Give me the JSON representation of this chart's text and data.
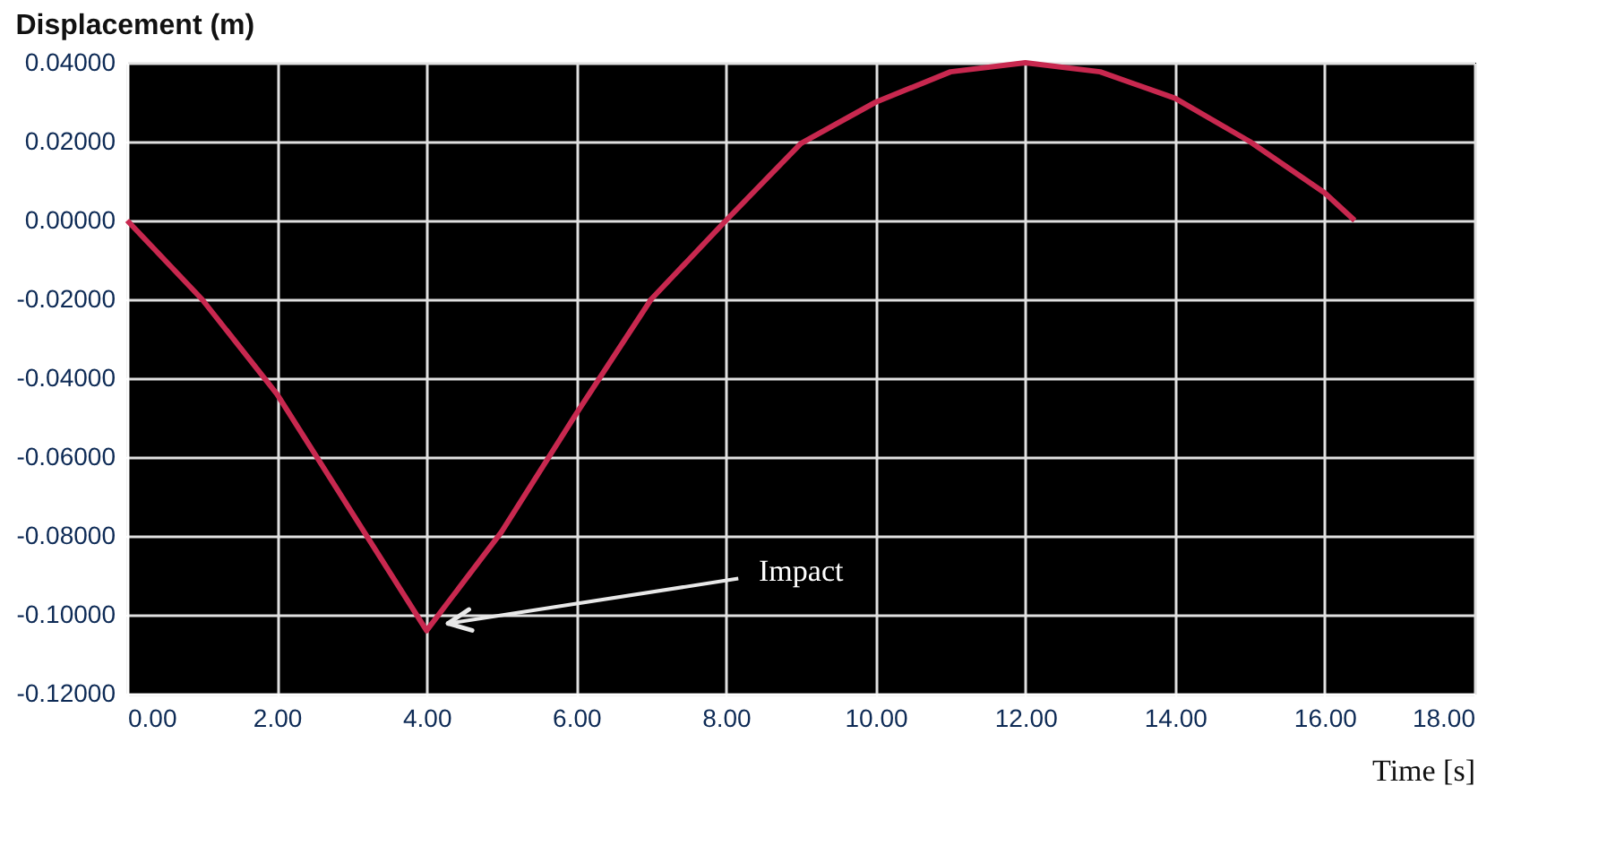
{
  "chart_data": {
    "type": "line",
    "title": "Displacement (m)",
    "xlabel": "Time [s]",
    "series": [
      {
        "color": "#c8284f",
        "x": [
          0,
          1,
          2,
          3,
          4,
          5,
          6,
          7,
          8,
          9,
          10,
          11,
          12,
          13,
          14,
          15,
          16,
          16.4
        ],
        "values": [
          0,
          -0.02,
          -0.044,
          -0.074,
          -0.104,
          -0.079,
          -0.049,
          -0.02,
          0,
          0.0195,
          0.03,
          0.0377,
          0.04,
          0.0377,
          0.031,
          0.02,
          0.007,
          0
        ]
      }
    ],
    "xlim": [
      0,
      18
    ],
    "xticks": [
      {
        "value": 0,
        "label": "0.00"
      },
      {
        "value": 2,
        "label": "2.00"
      },
      {
        "value": 4,
        "label": "4.00"
      },
      {
        "value": 6,
        "label": "6.00"
      },
      {
        "value": 8,
        "label": "8.00"
      },
      {
        "value": 10,
        "label": "10.00"
      },
      {
        "value": 12,
        "label": "12.00"
      },
      {
        "value": 14,
        "label": "14.00"
      },
      {
        "value": 16,
        "label": "16.00"
      },
      {
        "value": 18,
        "label": "18.00"
      }
    ],
    "ylim": [
      -0.12,
      0.04
    ],
    "yticks": [
      {
        "value": 0.04,
        "label": "0.04000"
      },
      {
        "value": 0.02,
        "label": "0.02000"
      },
      {
        "value": 0,
        "label": "0.00000"
      },
      {
        "value": -0.02,
        "label": "-0.02000"
      },
      {
        "value": -0.04,
        "label": "-0.04000"
      },
      {
        "value": -0.06,
        "label": "-0.06000"
      },
      {
        "value": -0.08,
        "label": "-0.08000"
      },
      {
        "value": -0.1,
        "label": "-0.10000"
      },
      {
        "value": -0.12,
        "label": "-0.12000"
      }
    ],
    "annotations": [
      "Impact"
    ],
    "grid": true,
    "marker": "none",
    "line_style": "solid"
  }
}
